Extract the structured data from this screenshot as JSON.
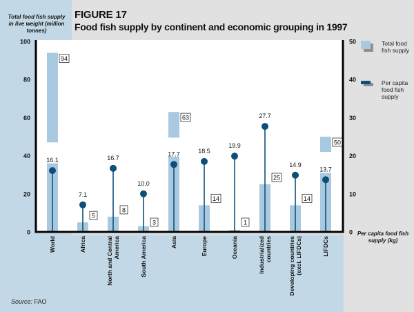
{
  "figure": {
    "number": "FIGURE 17",
    "title": "Food fish supply by continent and economic grouping in 1997",
    "source_label": "Source:",
    "source_value": "FAO"
  },
  "colors": {
    "bar": "#a9c9e0",
    "lollipop": "#0e4f78",
    "left_panel": "#c2d8e6",
    "background": "#e1e1e1",
    "plot_bg": "#ffffff",
    "axis": "#000000"
  },
  "chart_data": {
    "type": "bar",
    "title": "Food fish supply by continent and economic grouping in 1997",
    "categories": [
      "World",
      "Africa",
      "North and Central America",
      "South America",
      "Asia",
      "Europe",
      "Oceania",
      "Industrialized countries",
      "Developing countries (excl. LIFDCs)",
      "LIFDCs"
    ],
    "category_label_lines": [
      [
        "World"
      ],
      [
        "Africa"
      ],
      [
        "North and Central",
        "America"
      ],
      [
        "South America"
      ],
      [
        "Asia"
      ],
      [
        "Europe"
      ],
      [
        "Oceania"
      ],
      [
        "Industrialized",
        "countries"
      ],
      [
        "Developing countries",
        "(excl. LIFDCs)"
      ],
      [
        "LIFDCs"
      ]
    ],
    "series": [
      {
        "name": "Total food fish supply",
        "type": "bar",
        "axis": "left",
        "values": [
          94,
          5,
          8,
          3,
          63,
          14,
          1,
          25,
          14,
          50
        ],
        "labels": [
          "94",
          "5",
          "8",
          "3",
          "63",
          "14",
          "1",
          "25",
          "14",
          "50"
        ]
      },
      {
        "name": "Per capita food fish supply",
        "type": "lollipop",
        "axis": "right",
        "values": [
          16.1,
          7.1,
          16.7,
          10.0,
          17.7,
          18.5,
          19.9,
          27.7,
          14.9,
          13.7
        ],
        "labels": [
          "16.1",
          "7.1",
          "16.7",
          "10.0",
          "17.7",
          "18.5",
          "19.9",
          "27.7",
          "14.9",
          "13.7"
        ]
      }
    ],
    "bar_breaks": [
      {
        "category": "World",
        "lower_end": 36,
        "upper_start": 47
      },
      {
        "category": "Asia",
        "lower_end": 39.5,
        "upper_start": 49.5
      },
      {
        "category": "LIFDCs",
        "lower_end": 31,
        "upper_start": 42
      }
    ],
    "y_left": {
      "label": "Total food fish supply in live weight (million tonnes)",
      "ylim": [
        0,
        100
      ],
      "ticks": [
        "0",
        "20",
        "40",
        "60",
        "80",
        "100"
      ],
      "tick_values": [
        0,
        20,
        40,
        60,
        80,
        100
      ]
    },
    "y_right": {
      "label": "Per capita food fish supply (kg)",
      "ylim": [
        0,
        50
      ],
      "ticks": [
        "0",
        "10",
        "20",
        "30",
        "40",
        "50"
      ],
      "tick_values": [
        0,
        10,
        20,
        30,
        40,
        50
      ]
    },
    "legend": {
      "placement": "right",
      "entries": [
        "Total food fish supply",
        "Per capita food fish supply"
      ]
    },
    "grid": false
  }
}
